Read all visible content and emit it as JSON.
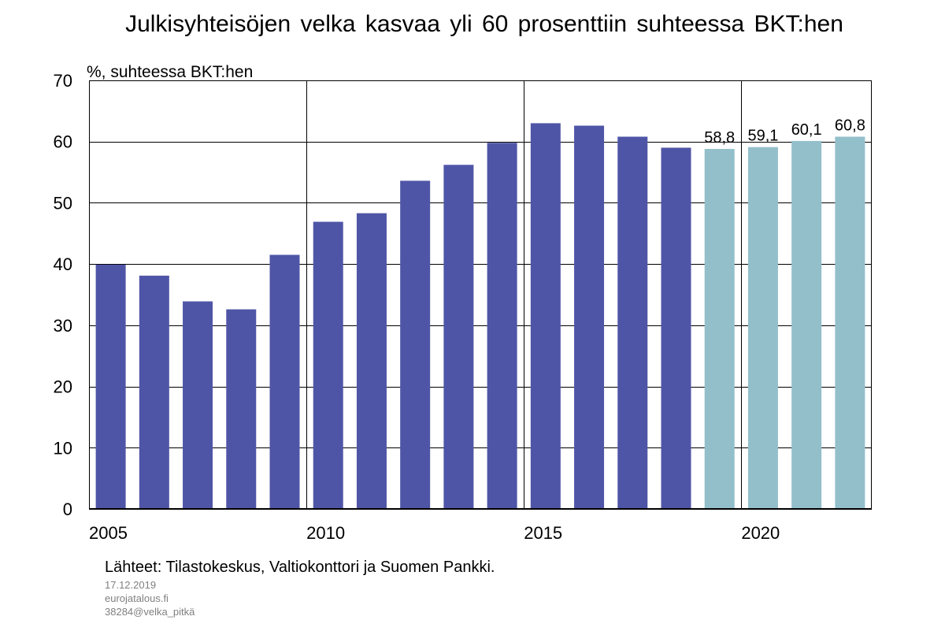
{
  "title": "Julkisyhteisöjen velka kasvaa yli 60 prosenttiin suhteessa BKT:hen",
  "chart_data": {
    "type": "bar",
    "title": "Julkisyhteisöjen velka kasvaa yli 60 prosenttiin suhteessa BKT:hen",
    "ylabel": "%, suhteessa BKT:hen",
    "xlabel": "",
    "ylim": [
      0,
      70
    ],
    "yticks": [
      0,
      10,
      20,
      30,
      40,
      50,
      60,
      70
    ],
    "xticks": [
      "2005",
      "2010",
      "2015",
      "2020"
    ],
    "grid": true,
    "categories": [
      "2005",
      "2006",
      "2007",
      "2008",
      "2009",
      "2010",
      "2011",
      "2012",
      "2013",
      "2014",
      "2015",
      "2016",
      "2017",
      "2018",
      "2019",
      "2020",
      "2021",
      "2022"
    ],
    "series": [
      {
        "values": [
          39.9,
          38.1,
          33.9,
          32.6,
          41.5,
          46.9,
          48.3,
          53.6,
          56.2,
          59.8,
          63.0,
          62.6,
          60.8,
          59.0,
          null,
          null,
          null,
          null
        ],
        "color": "#4f55a6"
      },
      {
        "values": [
          null,
          null,
          null,
          null,
          null,
          null,
          null,
          null,
          null,
          null,
          null,
          null,
          null,
          null,
          58.8,
          59.1,
          60.1,
          60.8
        ],
        "color": "#93bfcb",
        "labels": [
          "58,8",
          "59,1",
          "60,1",
          "60,8"
        ]
      }
    ]
  },
  "footer": {
    "sources": "Lähteet: Tilastokeskus, Valtiokonttori ja Suomen Pankki.",
    "date": "17.12.2019",
    "site": "eurojatalous.fi",
    "code": "38284@velka_pitkä"
  }
}
